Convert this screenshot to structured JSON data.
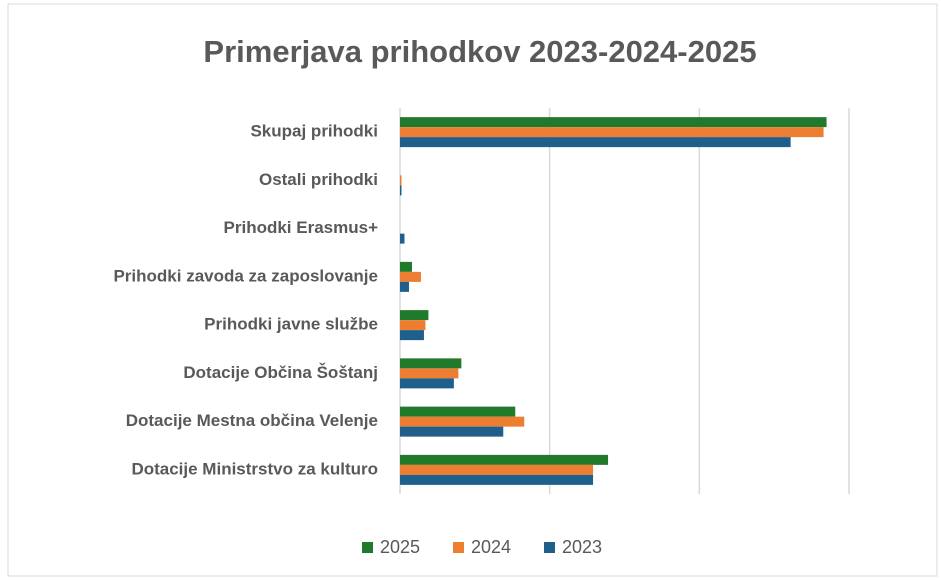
{
  "chart_data": {
    "type": "hbar",
    "title": "Primerjava prihodkov 2023-2024-2025",
    "categories": [
      "Skupaj prihodki",
      "Ostali prihodki",
      "Prihodki Erasmus+",
      "Prihodki zavoda za zaposlovanje",
      "Prihodki javne službe",
      "Dotacije Občina Šoštanj",
      "Dotacije Mestna občina Velenje",
      "Dotacije Ministrstvo za kulturo"
    ],
    "series": [
      {
        "name": "2025",
        "color": "#217a2c",
        "values": [
          2.85,
          0,
          0,
          0.08,
          0.19,
          0.41,
          0.77,
          1.39
        ]
      },
      {
        "name": "2024",
        "color": "#ed7d31",
        "values": [
          2.83,
          0.01,
          0,
          0.14,
          0.17,
          0.39,
          0.83,
          1.29
        ]
      },
      {
        "name": "2023",
        "color": "#1f5f8b",
        "values": [
          2.61,
          0.01,
          0.03,
          0.06,
          0.16,
          0.36,
          0.69,
          1.29
        ]
      }
    ],
    "xlim": [
      0,
      3
    ],
    "xticks": [
      0,
      1,
      2,
      3
    ],
    "grid": true,
    "legend": "bottom"
  }
}
